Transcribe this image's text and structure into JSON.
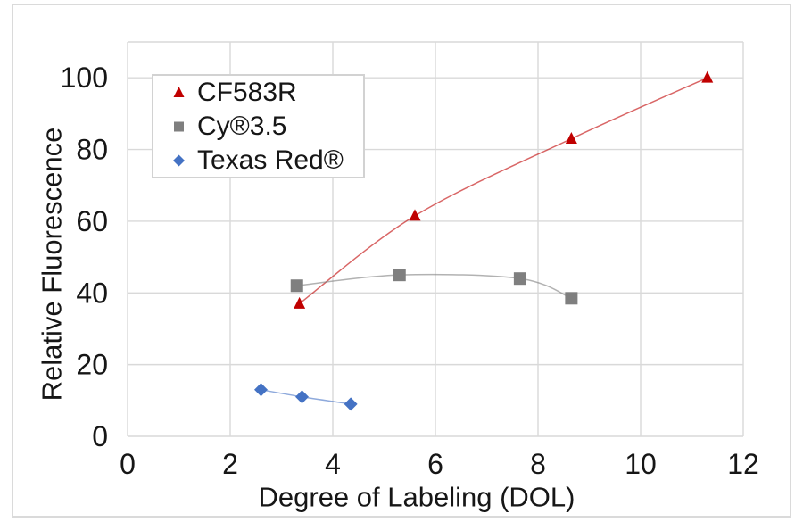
{
  "chart_data": {
    "type": "scatter",
    "title": "",
    "xlabel": "Degree of Labeling (DOL)",
    "ylabel": "Relative Fluorescence",
    "xlim": [
      0,
      12
    ],
    "ylim": [
      0,
      110
    ],
    "x_ticks": [
      0,
      2,
      4,
      6,
      8,
      10,
      12
    ],
    "y_ticks": [
      0,
      20,
      40,
      60,
      80,
      100
    ],
    "grid": true,
    "plot_border_top": true,
    "legend_position": "inside-top-left",
    "gridline_color": "#d9d9d9",
    "text_color": "#161616",
    "series": [
      {
        "name": "CF583R",
        "marker": "triangle",
        "color": "#c00000",
        "smooth": true,
        "points": [
          [
            3.35,
            37
          ],
          [
            5.6,
            61.5
          ],
          [
            8.65,
            83
          ],
          [
            11.3,
            100
          ]
        ]
      },
      {
        "name": "Cy®3.5",
        "marker": "square",
        "color": "#7f7f7f",
        "smooth": true,
        "points": [
          [
            3.3,
            42
          ],
          [
            5.3,
            45
          ],
          [
            7.65,
            44
          ],
          [
            8.65,
            38.5
          ]
        ]
      },
      {
        "name": "Texas Red®",
        "marker": "diamond",
        "color": "#4472c4",
        "smooth": true,
        "points": [
          [
            2.6,
            13
          ],
          [
            3.4,
            11
          ],
          [
            4.35,
            9
          ]
        ]
      }
    ]
  }
}
